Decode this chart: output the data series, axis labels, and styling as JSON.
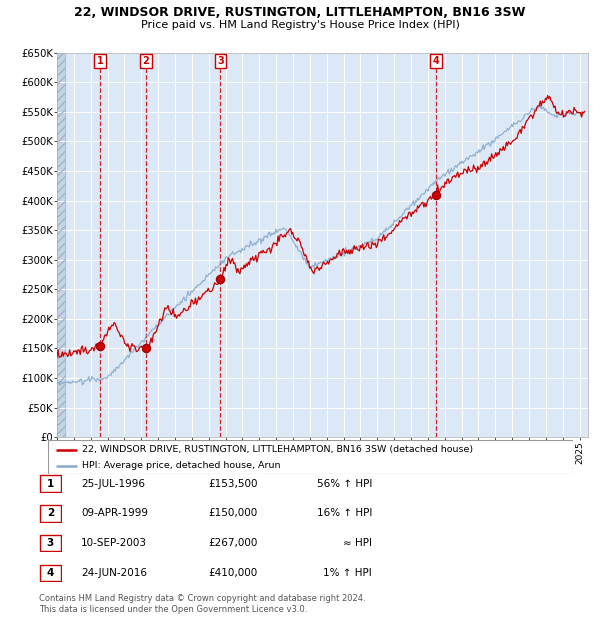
{
  "title1": "22, WINDSOR DRIVE, RUSTINGTON, LITTLEHAMPTON, BN16 3SW",
  "title2": "Price paid vs. HM Land Registry's House Price Index (HPI)",
  "ylabel_ticks": [
    "£0",
    "£50K",
    "£100K",
    "£150K",
    "£200K",
    "£250K",
    "£300K",
    "£350K",
    "£400K",
    "£450K",
    "£500K",
    "£550K",
    "£600K",
    "£650K"
  ],
  "ytick_values": [
    0,
    50000,
    100000,
    150000,
    200000,
    250000,
    300000,
    350000,
    400000,
    450000,
    500000,
    550000,
    600000,
    650000
  ],
  "xmin": 1994.0,
  "xmax": 2025.5,
  "ymin": 0,
  "ymax": 650000,
  "sale_dates": [
    1996.56,
    1999.27,
    2003.69,
    2016.48
  ],
  "sale_prices": [
    153500,
    150000,
    267000,
    410000
  ],
  "sale_labels": [
    "1",
    "2",
    "3",
    "4"
  ],
  "legend_line1": "22, WINDSOR DRIVE, RUSTINGTON, LITTLEHAMPTON, BN16 3SW (detached house)",
  "legend_line2": "HPI: Average price, detached house, Arun",
  "table_rows": [
    [
      "1",
      "25-JUL-1996",
      "£153,500",
      "56% ↑ HPI"
    ],
    [
      "2",
      "09-APR-1999",
      "£150,000",
      "16% ↑ HPI"
    ],
    [
      "3",
      "10-SEP-2003",
      "£267,000",
      "≈ HPI"
    ],
    [
      "4",
      "24-JUN-2016",
      "£410,000",
      "1% ↑ HPI"
    ]
  ],
  "footer": "Contains HM Land Registry data © Crown copyright and database right 2024.\nThis data is licensed under the Open Government Licence v3.0.",
  "plot_bg": "#dce8f5",
  "line_color_red": "#cc0000",
  "line_color_blue": "#88aacc",
  "grid_color": "#ffffff"
}
